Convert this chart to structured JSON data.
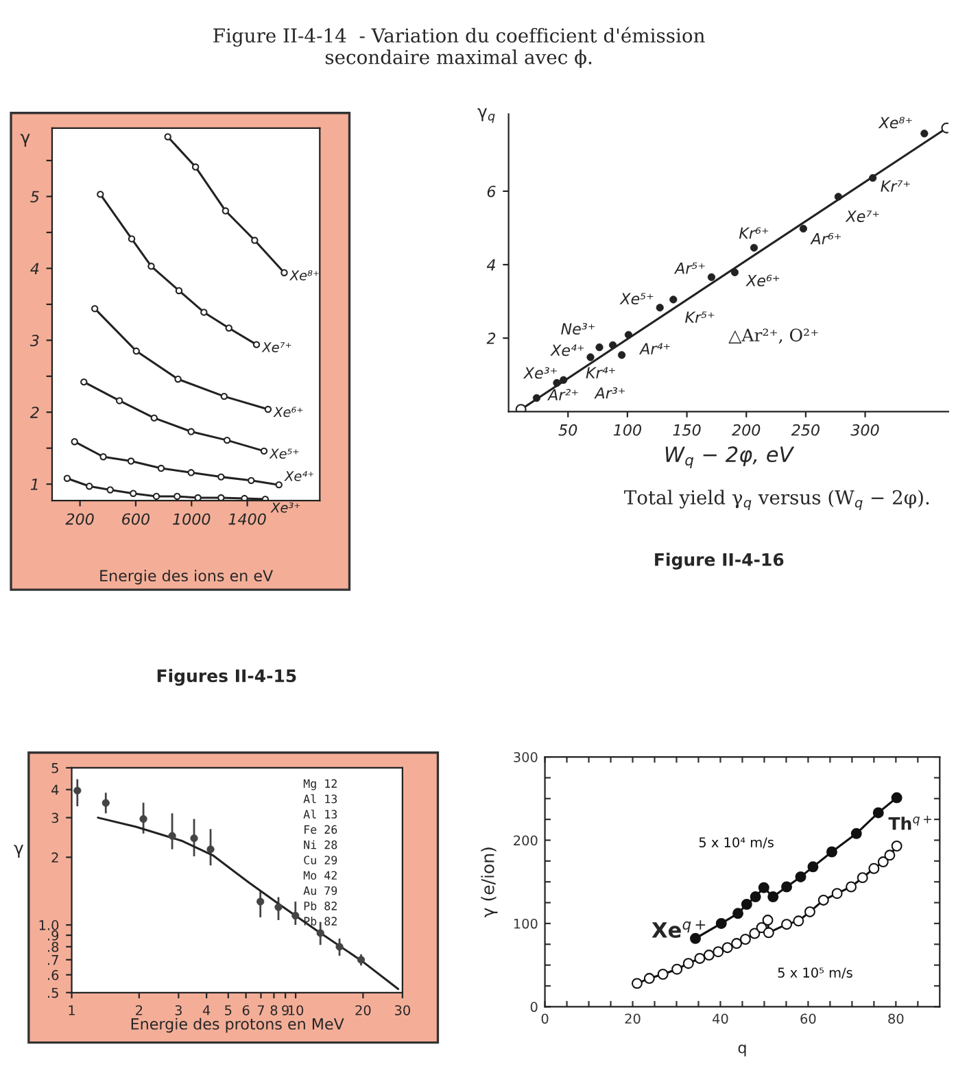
{
  "chart_data": [
    {
      "type": "line",
      "xlabel": "Energie des ions en eV",
      "ylabel": "γ",
      "xlim": [
        0,
        1920
      ],
      "ylim": [
        0.77,
        5.95
      ],
      "xticks": [
        200,
        600,
        1000,
        1400
      ],
      "yticks": [
        1,
        {
          "value": 1.5,
          "label": null
        },
        2,
        {
          "value": 2.5,
          "label": null
        },
        3,
        {
          "value": 3.5,
          "label": null
        },
        4,
        {
          "value": 4.5,
          "label": null
        },
        5,
        {
          "value": 5.5,
          "label": null
        }
      ],
      "marker": "circle",
      "annotations": [
        "Figure II-4-14  - Variation du coefficient d'émission\nsecondaire maximal avec ϕ.",
        "Figures II-4-15"
      ],
      "series": [
        {
          "name": "Xe⁸⁺",
          "color": "#222222",
          "x": [
            830,
            1029,
            1244,
            1453,
            1665
          ],
          "values": [
            5.83,
            5.41,
            4.8,
            4.39,
            3.94
          ]
        },
        {
          "name": "Xe⁷⁺",
          "color": "#222222",
          "x": [
            346,
            571,
            711,
            910,
            1089,
            1268,
            1466
          ],
          "values": [
            5.03,
            4.41,
            4.03,
            3.69,
            3.39,
            3.17,
            2.94
          ]
        },
        {
          "name": "Xe⁶⁺",
          "color": "#222222",
          "x": [
            306,
            604,
            903,
            1234,
            1549
          ],
          "values": [
            3.44,
            2.85,
            2.46,
            2.22,
            2.04
          ]
        },
        {
          "name": "Xe⁵⁺",
          "color": "#222222",
          "x": [
            228,
            483,
            732,
            997,
            1255,
            1520
          ],
          "values": [
            2.42,
            2.16,
            1.92,
            1.73,
            1.61,
            1.46
          ]
        },
        {
          "name": "Xe⁴⁺",
          "color": "#222222",
          "x": [
            161,
            367,
            566,
            782,
            997,
            1212,
            1428,
            1627
          ],
          "values": [
            1.59,
            1.38,
            1.32,
            1.22,
            1.16,
            1.1,
            1.05,
            0.99
          ]
        },
        {
          "name": "Xe³⁺",
          "color": "#222222",
          "x": [
            108,
            267,
            417,
            582,
            748,
            897,
            1046,
            1212,
            1380,
            1529
          ],
          "values": [
            1.08,
            0.97,
            0.92,
            0.87,
            0.83,
            0.83,
            0.81,
            0.81,
            0.8,
            0.79
          ]
        }
      ]
    },
    {
      "type": "scatter",
      "xlabel": "W$_{q}$ − 2φ, eV",
      "ylabel": "γ$_{q}$",
      "xlim": [
        0,
        370
      ],
      "ylim": [
        0,
        8.1
      ],
      "xticks": [
        50,
        100,
        150,
        200,
        250,
        300
      ],
      "yticks": [
        2,
        4,
        6
      ],
      "marker": "circle",
      "series": [
        {
          "color": "#222222",
          "x": [
            23.6,
            40.6,
            46.2,
            68.9,
            76.4,
            87.7,
            100.9,
            95.2,
            127.3,
            138.6,
            170.7,
            190.3,
            206.5,
            248,
            277.4,
            306.4,
            349.8
          ],
          "values": [
            0.37,
            0.78,
            0.86,
            1.48,
            1.75,
            1.81,
            2.09,
            1.54,
            2.83,
            3.05,
            3.66,
            3.79,
            4.46,
            4.98,
            5.85,
            6.36,
            7.57
          ]
        },
        {
          "type": "line",
          "color": "#222222",
          "x": [
            10.4,
            368.6
          ],
          "values": [
            0.06,
            7.72
          ]
        }
      ],
      "annotations": [
        {
          "text": "Ar²⁺",
          "x": 23.6,
          "y": 0.37
        },
        {
          "text": "Ar³⁺",
          "x": 40.6,
          "y": 0.78
        },
        {
          "text": "Xe³⁺",
          "x": 46.2,
          "y": 0.86
        },
        {
          "text": "Xe⁴⁺",
          "x": 68.9,
          "y": 1.48
        },
        {
          "text": "Ne³⁺",
          "x": 76.4,
          "y": 1.75
        },
        {
          "text": "Kr⁴⁺",
          "x": 95.2,
          "y": 1.54
        },
        {
          "text": "Ar⁴⁺",
          "x": 100.9,
          "y": 2.09
        },
        {
          "text": "Xe⁵⁺",
          "x": 127.3,
          "y": 2.83
        },
        {
          "text": "Kr⁵⁺",
          "x": 138.6,
          "y": 3.05
        },
        {
          "text": "Ar⁵⁺",
          "x": 170.7,
          "y": 3.66
        },
        {
          "text": "Xe⁶⁺",
          "x": 190.3,
          "y": 3.79
        },
        {
          "text": "Kr⁶⁺",
          "x": 206.5,
          "y": 4.46
        },
        {
          "text": "Ar⁶⁺",
          "x": 248,
          "y": 4.98
        },
        {
          "text": "Xe⁷⁺",
          "x": 277.4,
          "y": 5.85
        },
        {
          "text": "Kr⁷⁺",
          "x": 306.4,
          "y": 6.36
        },
        {
          "text": "Xe⁸⁺",
          "x": 349.8,
          "y": 7.57
        },
        "△Ar²⁺, O²⁺",
        "Total yield γ$_{q}$ versus (W$_{q}$ − 2φ).",
        "Figure II-4-16"
      ]
    },
    {
      "type": "scatter",
      "log": "xy",
      "xlabel": "Energie des protons en MeV",
      "ylabel": "γ",
      "xlim": [
        1,
        30
      ],
      "ylim": [
        0.5,
        5
      ],
      "xticks": [
        1,
        2,
        3,
        4,
        5,
        6,
        7,
        8,
        9,
        10,
        20,
        30
      ],
      "yticks": [
        {
          "value": 0.5,
          "label": ".5"
        },
        {
          "value": 0.6,
          "label": ".6"
        },
        {
          "value": 0.7,
          "label": ".7"
        },
        {
          "value": 0.8,
          "label": ".8"
        },
        {
          "value": 0.9,
          "label": ".9"
        },
        {
          "value": 1,
          "label": "1.0"
        },
        2,
        3,
        4,
        5
      ],
      "marker": "circle",
      "series": [
        {
          "color": "#444444",
          "x": [
            1.06,
            1.42,
            2.09,
            2.81,
            3.52,
            4.17,
            6.96,
            8.38,
            9.98,
            12.9,
            15.7,
            19.6
          ],
          "values": [
            3.96,
            3.49,
            2.96,
            2.49,
            2.43,
            2.17,
            1.27,
            1.2,
            1.1,
            0.92,
            0.8,
            0.7
          ],
          "errors": [
            [
              3.37,
              4.45
            ],
            [
              3.14,
              3.87
            ],
            [
              2.55,
              3.5
            ],
            [
              2.17,
              3.14
            ],
            [
              2.02,
              2.96
            ],
            [
              1.84,
              2.67
            ],
            [
              1.08,
              1.42
            ],
            [
              1.05,
              1.33
            ],
            [
              1.0,
              1.27
            ],
            [
              0.815,
              1.03
            ],
            [
              0.73,
              0.87
            ],
            [
              0.66,
              0.74
            ]
          ]
        },
        {
          "type": "line",
          "marker": "none",
          "color": "#222222",
          "x": [
            1.31,
            1.94,
            3.09,
            4.27,
            6.2,
            8.6,
            12.4,
            19.8,
            28.7
          ],
          "values": [
            3.0,
            2.73,
            2.37,
            2.04,
            1.54,
            1.22,
            0.946,
            0.69,
            0.519
          ]
        }
      ],
      "annotations": [
        "Mg 12",
        "Al 13",
        "Al 13",
        "Fe 26",
        "Ni 28",
        "Cu 29",
        "Mo 42",
        "Au 79",
        "Pb 82",
        "Pb 82"
      ]
    },
    {
      "type": "line",
      "xlabel": "q",
      "ylabel": "γ (e/ion)",
      "xlim": [
        0,
        90
      ],
      "ylim": [
        0,
        300
      ],
      "xticks": [
        0,
        {
          "value": 5,
          "label": null
        },
        {
          "value": 10,
          "label": null
        },
        {
          "value": 15,
          "label": null
        },
        20,
        {
          "value": 25,
          "label": null
        },
        {
          "value": 30,
          "label": null
        },
        {
          "value": 35,
          "label": null
        },
        40,
        {
          "value": 45,
          "label": null
        },
        {
          "value": 50,
          "label": null
        },
        {
          "value": 55,
          "label": null
        },
        60,
        {
          "value": 65,
          "label": null
        },
        {
          "value": 70,
          "label": null
        },
        {
          "value": 75,
          "label": null
        },
        80,
        {
          "value": 85,
          "label": null
        }
      ],
      "yticks": [
        0,
        {
          "value": 25,
          "label": null
        },
        {
          "value": 50,
          "label": null
        },
        {
          "value": 75,
          "label": null
        },
        100,
        {
          "value": 125,
          "label": null
        },
        {
          "value": 150,
          "label": null
        },
        {
          "value": 175,
          "label": null
        },
        200,
        {
          "value": 225,
          "label": null
        },
        {
          "value": 250,
          "label": null
        },
        {
          "value": 275,
          "label": null
        },
        300
      ],
      "marker": "circle",
      "series": [
        {
          "name": "5 x 10⁴ m/s",
          "color": "#111111",
          "x": [
            34.3,
            40.2,
            44.0,
            46.0,
            48.0,
            49.9,
            52.0,
            55.1,
            58.3,
            61.1,
            65.4,
            71.0,
            76.0,
            80.2
          ],
          "values": [
            82,
            100,
            112,
            123,
            132,
            143,
            132,
            144,
            156,
            168,
            186,
            208,
            233,
            251
          ]
        },
        {
          "name": "5 x 10⁵ m/s",
          "color": "#111111",
          "x": [
            21.0,
            23.8,
            26.9,
            30.1,
            32.7,
            35.3,
            37.4,
            39.5,
            41.6,
            43.7,
            45.7,
            47.8,
            49.4,
            50.8,
            51.0,
            55.1,
            57.8,
            60.4,
            63.5,
            66.6,
            69.8,
            72.4,
            75.0,
            77.1,
            78.6,
            80.2
          ],
          "values": [
            28,
            34,
            39,
            45,
            52,
            58,
            62,
            66,
            71,
            76,
            81,
            88,
            95,
            104,
            89,
            99,
            103,
            114,
            128,
            136,
            144,
            155,
            166,
            174,
            182,
            193
          ]
        }
      ],
      "annotations": [
        "Xe$^{q+}$",
        "Th$^{q+}$"
      ]
    }
  ]
}
